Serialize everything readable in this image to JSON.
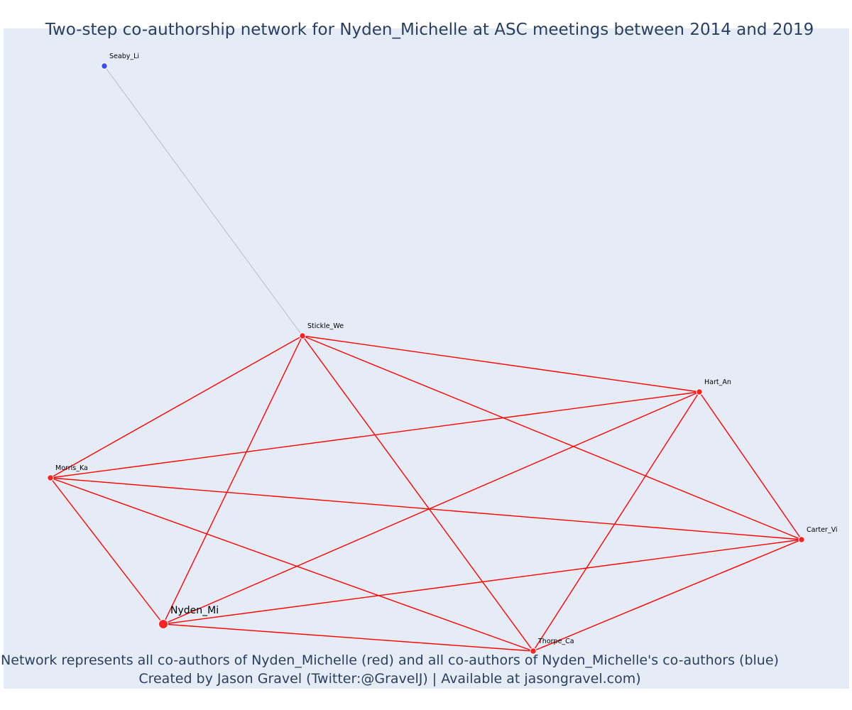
{
  "title": "Two-step co-authorship network for Nyden_Michelle at ASC meetings between 2014 and 2019",
  "caption_line1": "Network represents all co-authors of Nyden_Michelle (red) and all co-authors of Nyden_Michelle's co-authors (blue)",
  "caption_line2": "Created by Jason Gravel (Twitter:@GravelJ) | Available at jasongravel.com)",
  "colors": {
    "first_degree": "#ff2222",
    "second_degree": "#3b4cf0",
    "edge_first": "#ff0000",
    "edge_second": "#b8bcc9",
    "background": "#e5ecf6",
    "title": "#2a3f5f"
  },
  "chart_data": {
    "type": "network",
    "focal_node": "Nyden_Mi",
    "nodes": [
      {
        "id": "Nyden_Mi",
        "label": "Nyden_Mi",
        "group": "focal"
      },
      {
        "id": "Stickle_We",
        "label": "Stickle_We",
        "group": "co-author"
      },
      {
        "id": "Hart_An",
        "label": "Hart_An",
        "group": "co-author"
      },
      {
        "id": "Morris_Ka",
        "label": "Morris_Ka",
        "group": "co-author"
      },
      {
        "id": "Carter_Vi",
        "label": "Carter_Vi",
        "group": "co-author"
      },
      {
        "id": "Thorpe_Ca",
        "label": "Thorpe_Ca",
        "group": "co-author"
      },
      {
        "id": "Seaby_Li",
        "label": "Seaby_Li",
        "group": "second-degree"
      }
    ],
    "edges": [
      [
        "Stickle_We",
        "Seaby_Li"
      ],
      [
        "Stickle_We",
        "Hart_An"
      ],
      [
        "Stickle_We",
        "Morris_Ka"
      ],
      [
        "Stickle_We",
        "Nyden_Mi"
      ],
      [
        "Stickle_We",
        "Thorpe_Ca"
      ],
      [
        "Stickle_We",
        "Carter_Vi"
      ],
      [
        "Hart_An",
        "Morris_Ka"
      ],
      [
        "Hart_An",
        "Nyden_Mi"
      ],
      [
        "Hart_An",
        "Thorpe_Ca"
      ],
      [
        "Hart_An",
        "Carter_Vi"
      ],
      [
        "Morris_Ka",
        "Nyden_Mi"
      ],
      [
        "Morris_Ka",
        "Thorpe_Ca"
      ],
      [
        "Morris_Ka",
        "Carter_Vi"
      ],
      [
        "Nyden_Mi",
        "Carter_Vi"
      ],
      [
        "Nyden_Mi",
        "Thorpe_Ca"
      ],
      [
        "Carter_Vi",
        "Thorpe_Ca"
      ]
    ]
  }
}
